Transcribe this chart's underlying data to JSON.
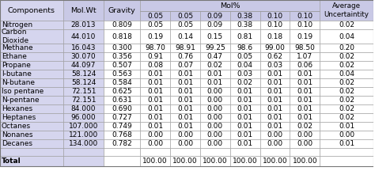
{
  "components": [
    "Nitrogen",
    "Carbon\nDioxide",
    "Methane",
    "Ethane",
    "Propane",
    "I-butane",
    "N-butane",
    "Iso pentane",
    "N-pentane",
    "Hexanes",
    "Heptanes",
    "Octanes",
    "Nonanes",
    "Decanes",
    "",
    "Total"
  ],
  "mol_wt": [
    "28.013",
    "44.010",
    "16.043",
    "30.070",
    "44.097",
    "58.124",
    "58.124",
    "72.151",
    "72.151",
    "84.000",
    "96.000",
    "107.000",
    "121.000",
    "134.000",
    "",
    ""
  ],
  "gravity": [
    "0.809",
    "0.818",
    "0.300",
    "0.356",
    "0.507",
    "0.563",
    "0.584",
    "0.625",
    "0.631",
    "0.690",
    "0.727",
    "0.749",
    "0.768",
    "0.782",
    "",
    ""
  ],
  "mol_pct": [
    [
      "0.05",
      "0.05",
      "0.09",
      "0.38",
      "0.10",
      "0.10"
    ],
    [
      "0.19",
      "0.14",
      "0.15",
      "0.81",
      "0.18",
      "0.19"
    ],
    [
      "98.70",
      "98.91",
      "99.25",
      "98.6",
      "99.00",
      "98.50"
    ],
    [
      "0.91",
      "0.76",
      "0.47",
      "0.05",
      "0.62",
      "1.07"
    ],
    [
      "0.08",
      "0.07",
      "0.02",
      "0.04",
      "0.03",
      "0.06"
    ],
    [
      "0.01",
      "0.01",
      "0.01",
      "0.03",
      "0.01",
      "0.01"
    ],
    [
      "0.01",
      "0.01",
      "0.01",
      "0.02",
      "0.01",
      "0.01"
    ],
    [
      "0.01",
      "0.01",
      "0.00",
      "0.01",
      "0.01",
      "0.01"
    ],
    [
      "0.01",
      "0.01",
      "0.00",
      "0.01",
      "0.01",
      "0.01"
    ],
    [
      "0.01",
      "0.01",
      "0.00",
      "0.01",
      "0.01",
      "0.01"
    ],
    [
      "0.01",
      "0.01",
      "0.00",
      "0.01",
      "0.01",
      "0.01"
    ],
    [
      "0.01",
      "0.01",
      "0.00",
      "0.01",
      "0.01",
      "0.02"
    ],
    [
      "0.00",
      "0.00",
      "0.00",
      "0.01",
      "0.00",
      "0.00"
    ],
    [
      "0.00",
      "0.00",
      "0.00",
      "0.01",
      "0.00",
      "0.00"
    ],
    [
      "",
      "",
      "",
      "",
      "",
      ""
    ],
    [
      "100.00",
      "100.00",
      "100.00",
      "100.00",
      "100.00",
      "100.00"
    ]
  ],
  "uncertainty": [
    "0.02",
    "0.04",
    "0.20",
    "0.02",
    "0.02",
    "0.04",
    "0.02",
    "0.02",
    "0.02",
    "0.02",
    "0.02",
    "0.01",
    "0.00",
    "0.01",
    "",
    ""
  ],
  "mol_subheaders": [
    "0.05",
    "0.05",
    "0.09",
    "0.38",
    "0.10",
    "0.10"
  ],
  "header_bg": "#c9c9e6",
  "lavender_bg": "#d5d5ee",
  "white_bg": "#ffffff",
  "font_size": 6.5,
  "header_font_size": 6.8
}
